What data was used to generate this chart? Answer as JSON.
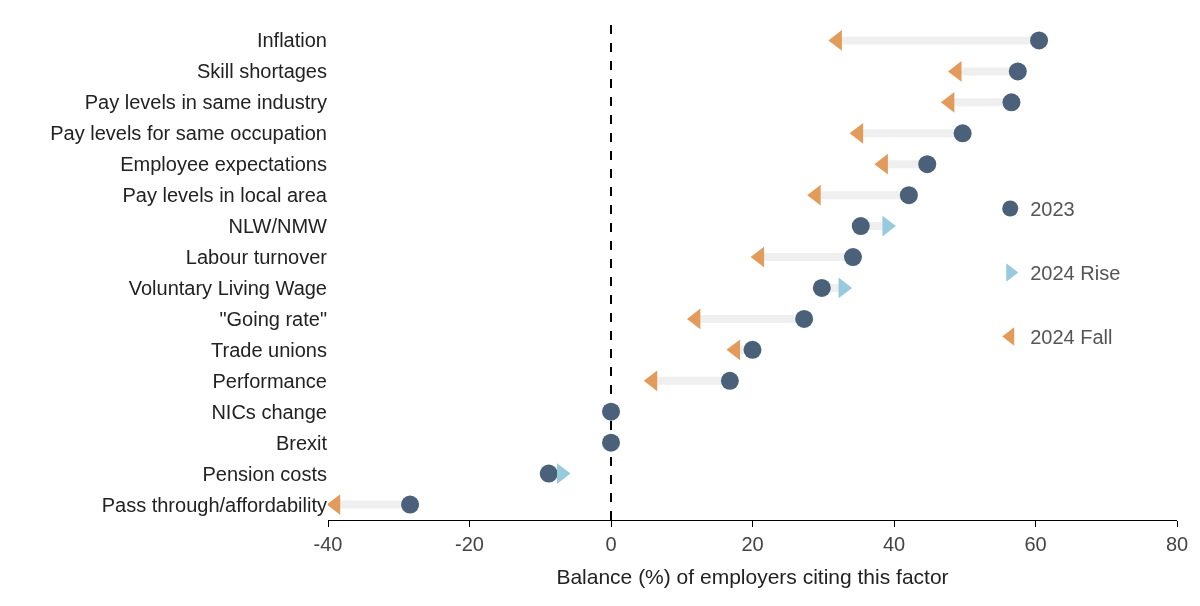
{
  "chart_data": {
    "type": "scatter",
    "xlabel": "Balance (%) of employers citing this factor",
    "categories": [
      "Inflation",
      "Skill shortages",
      "Pay levels in same industry",
      "Pay levels for same occupation",
      "Employee expectations",
      "Pay levels in local area",
      "NLW/NMW",
      "Labour turnover",
      "Voluntary Living Wage",
      "\"Going rate\"",
      "Trade unions",
      "Performance",
      "NICs change",
      "Brexit",
      "Pension costs",
      "Pass through/affordability"
    ],
    "orientation": "horizontal",
    "series": [
      {
        "name": "2023",
        "color": "#4a6179",
        "marker": "circle",
        "values": [
          60.5,
          57.5,
          56.6,
          49.7,
          44.7,
          42.1,
          35.3,
          34.2,
          29.8,
          27.3,
          20,
          16.8,
          0,
          0,
          -8.8,
          -28.4
        ]
      },
      {
        "name": "2024 Rise",
        "color": "#96cadc",
        "marker": "triangle-right",
        "values": [
          null,
          null,
          null,
          null,
          null,
          null,
          39,
          null,
          32.8,
          null,
          null,
          null,
          null,
          null,
          -7,
          null
        ]
      },
      {
        "name": "2024 Fall",
        "color": "#e39b5b",
        "marker": "triangle-left",
        "values": [
          32,
          48.9,
          47.9,
          35,
          38.5,
          29,
          null,
          21,
          null,
          12,
          17.6,
          5.9,
          null,
          null,
          null,
          -38.9
        ]
      }
    ],
    "xlim": [
      -40,
      80
    ],
    "xticks": [
      -40,
      -20,
      0,
      20,
      40,
      60,
      80
    ],
    "ref_lines": [
      {
        "axis": "x",
        "value": 0,
        "color": "#000000",
        "line_style": "dashed"
      }
    ],
    "grid": false,
    "legend": "right"
  }
}
